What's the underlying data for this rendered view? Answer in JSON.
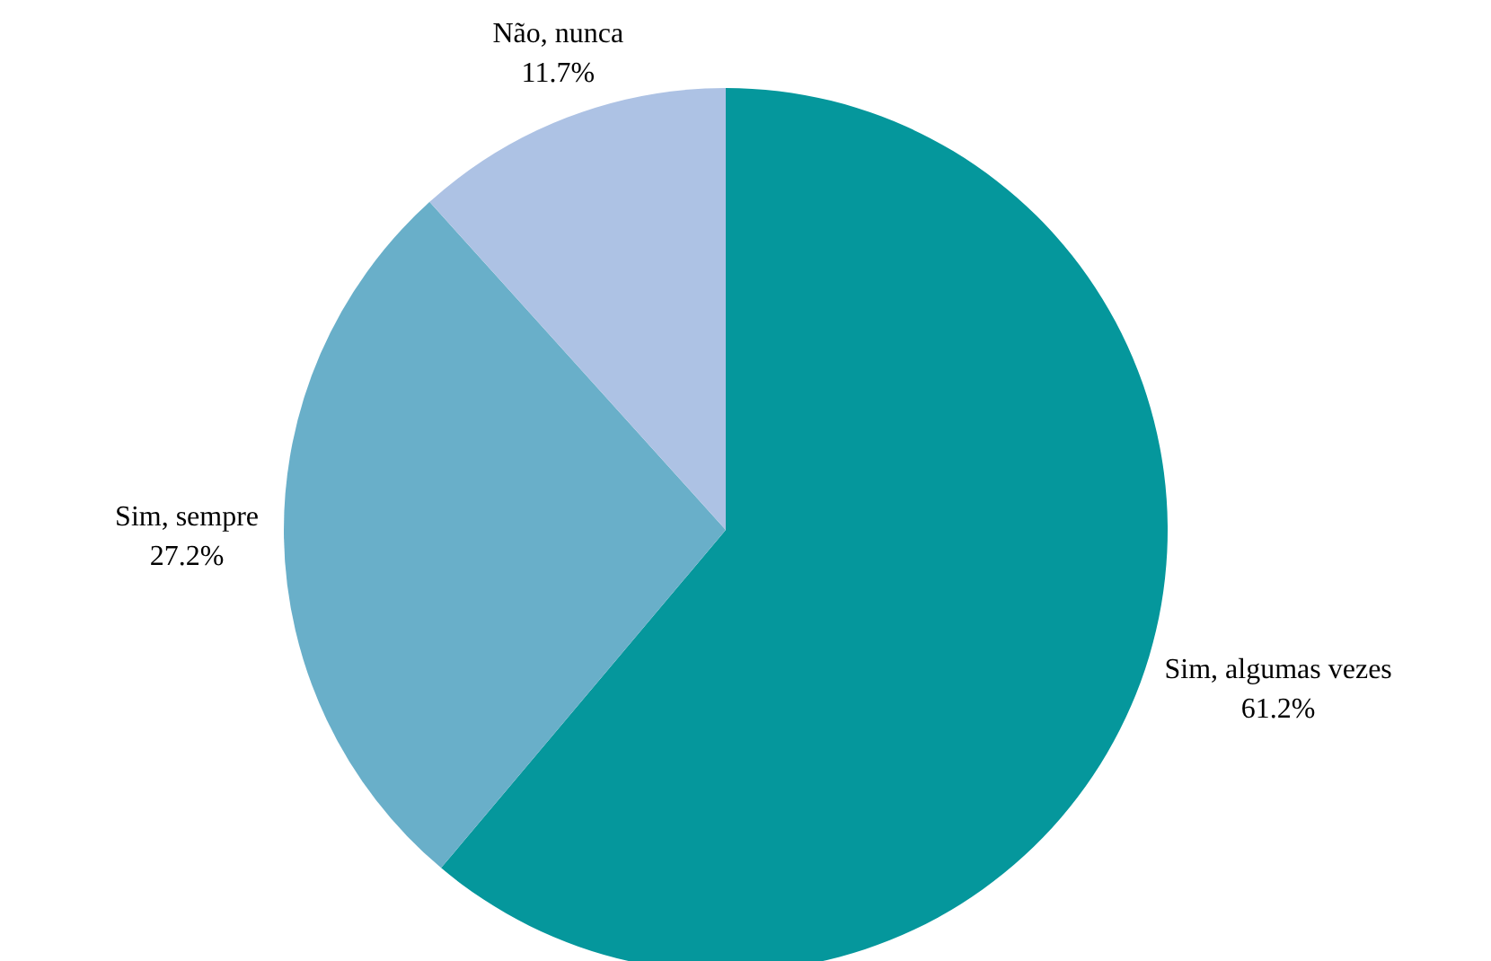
{
  "chart_data": {
    "type": "pie",
    "categories": [
      "Sim, algumas vezes",
      "Sim, sempre",
      "Não, nunca"
    ],
    "values": [
      61.2,
      27.2,
      11.7
    ],
    "value_labels": [
      "61.2%",
      "27.2%",
      "11.7%"
    ],
    "colors": [
      "#05979c",
      "#69afc9",
      "#adc2e4"
    ]
  }
}
